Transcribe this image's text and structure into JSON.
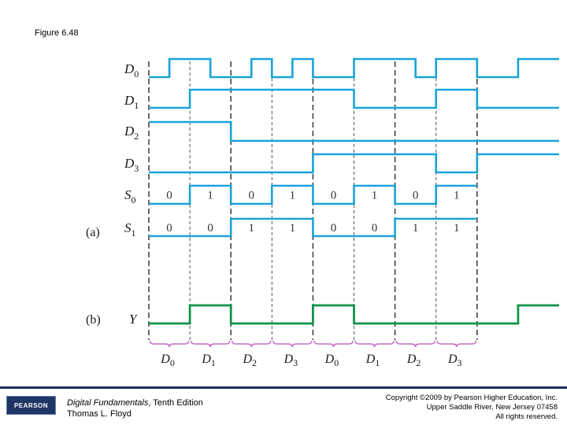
{
  "figure_label": "Figure 6.48",
  "part_labels": {
    "a": "(a)",
    "b": "(b)"
  },
  "signals": [
    {
      "name": "D",
      "sub": "0",
      "levels": [
        0,
        1,
        1,
        0,
        0,
        1,
        0,
        1,
        0,
        0,
        1,
        1,
        1,
        0,
        1,
        1,
        0,
        0,
        1,
        1
      ]
    },
    {
      "name": "D",
      "sub": "1",
      "levels": [
        0,
        0,
        1,
        1,
        1,
        1,
        1,
        1,
        1,
        1,
        0,
        0,
        0,
        0,
        1,
        1,
        0,
        0,
        0,
        0
      ]
    },
    {
      "name": "D",
      "sub": "2",
      "levels": [
        1,
        1,
        1,
        1,
        0,
        0,
        0,
        0,
        0,
        0,
        0,
        0,
        0,
        0,
        0,
        0,
        0,
        0,
        0,
        0
      ]
    },
    {
      "name": "D",
      "sub": "3",
      "levels": [
        0,
        0,
        0,
        0,
        0,
        0,
        0,
        0,
        1,
        1,
        1,
        1,
        1,
        1,
        0,
        0,
        1,
        1,
        1,
        1
      ]
    },
    {
      "name": "S",
      "sub": "0",
      "bits": [
        "0",
        "1",
        "0",
        "1",
        "0",
        "1",
        "0",
        "1"
      ]
    },
    {
      "name": "S",
      "sub": "1",
      "bits": [
        "0",
        "0",
        "1",
        "1",
        "0",
        "0",
        "1",
        "1"
      ]
    }
  ],
  "output": {
    "name": "Y",
    "levels": [
      0,
      0,
      1,
      1,
      0,
      0,
      0,
      0,
      1,
      1,
      0,
      0,
      0,
      0,
      0,
      0,
      0,
      0,
      1,
      1
    ]
  },
  "slot_labels": [
    {
      "name": "D",
      "sub": "0"
    },
    {
      "name": "D",
      "sub": "1"
    },
    {
      "name": "D",
      "sub": "2"
    },
    {
      "name": "D",
      "sub": "3"
    },
    {
      "name": "D",
      "sub": "0"
    },
    {
      "name": "D",
      "sub": "1"
    },
    {
      "name": "D",
      "sub": "2"
    },
    {
      "name": "D",
      "sub": "3"
    }
  ],
  "colors": {
    "signal": "#1aa3d9",
    "output": "#119447",
    "brace": "#c46bc8",
    "dashed": "#444444"
  },
  "footer": {
    "logo_text": "PEARSON",
    "book_title": "Digital Fundamentals",
    "book_edition": ", Tenth Edition",
    "author": "Thomas L. Floyd",
    "copyright_line1": "Copyright ©2009 by Pearson Higher Education, Inc.",
    "copyright_line2": "Upper Saddle River, New Jersey 07458",
    "copyright_line3": "All rights reserved."
  }
}
